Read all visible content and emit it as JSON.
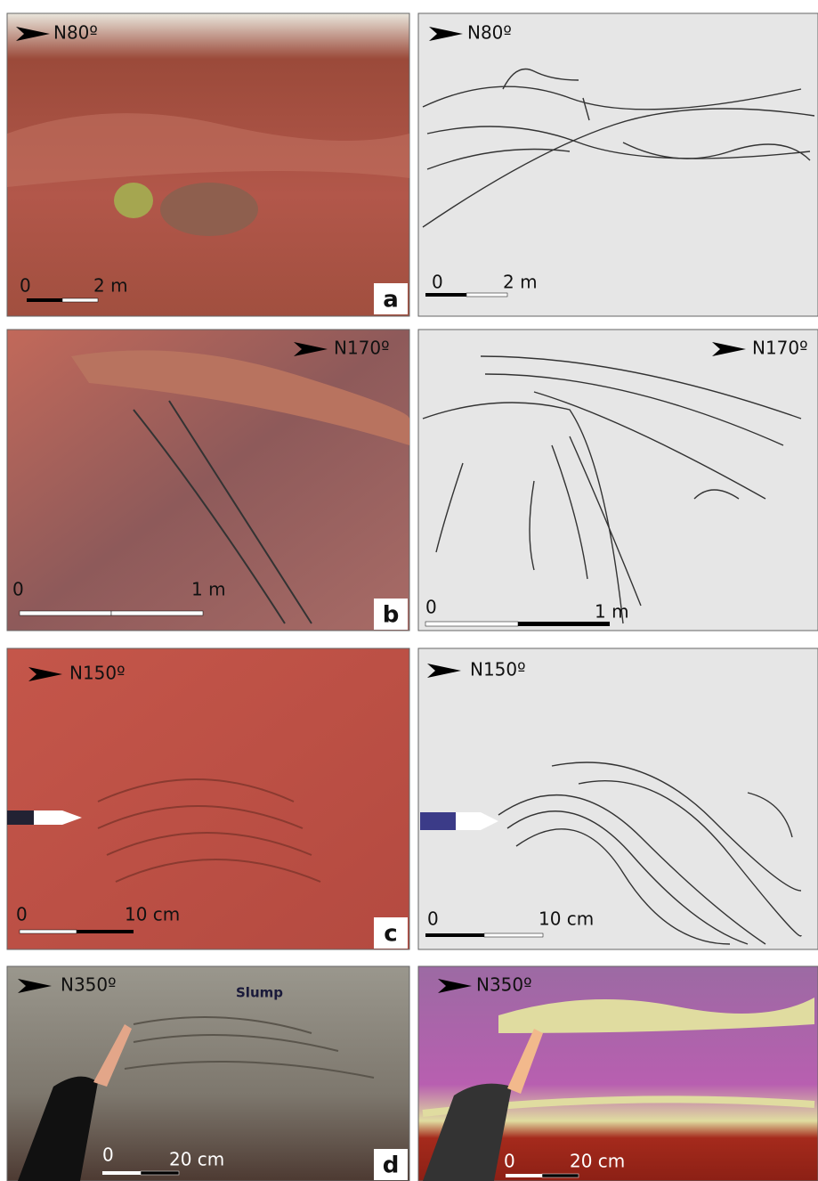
{
  "panels": [
    {
      "label": "a",
      "photo": {
        "orientation": "N80º",
        "scale": {
          "start": "0",
          "end": "2 m"
        }
      },
      "drawing": {
        "orientation": "N80º",
        "scale": {
          "start": "0",
          "end": "2 m"
        }
      }
    },
    {
      "label": "b",
      "photo": {
        "orientation": "N170º",
        "scale": {
          "start": "0",
          "end": "1 m"
        }
      },
      "drawing": {
        "orientation": "N170º",
        "scale": {
          "start": "0",
          "end": "1 m"
        }
      }
    },
    {
      "label": "c",
      "photo": {
        "orientation": "N150º",
        "scale": {
          "start": "0",
          "end": "10 cm"
        }
      },
      "drawing": {
        "orientation": "N150º",
        "scale": {
          "start": "0",
          "end": "10 cm"
        }
      }
    },
    {
      "label": "d",
      "photo": {
        "orientation": "N350º",
        "annotation": "Slump",
        "scale": {
          "start": "0",
          "end": "20 cm"
        }
      },
      "drawing": {
        "orientation": "N350º",
        "scale": {
          "start": "0",
          "end": "20 cm"
        }
      }
    }
  ]
}
